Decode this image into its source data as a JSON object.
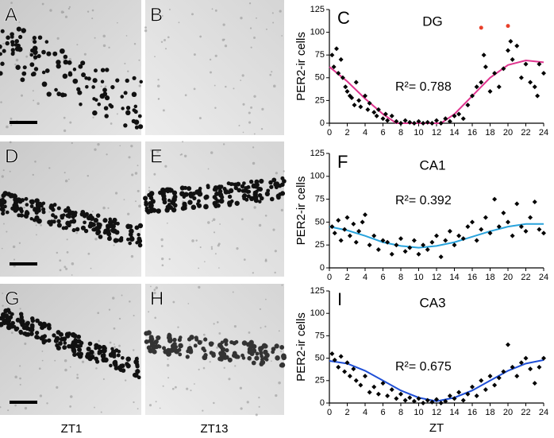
{
  "panels": [
    "A",
    "B",
    "D",
    "E",
    "G",
    "H"
  ],
  "column_labels": [
    "ZT1",
    "ZT13"
  ],
  "chart_data": [
    {
      "type": "scatter",
      "panel_label": "C",
      "title": "DG",
      "annotation": "R²= 0.788",
      "y_label": "PER2-ir cells",
      "xlim": [
        0,
        24
      ],
      "ylim": [
        0,
        125
      ],
      "xticks": [
        0,
        2,
        4,
        6,
        8,
        10,
        12,
        14,
        16,
        18,
        20,
        22,
        24
      ],
      "yticks": [
        0,
        25,
        50,
        75,
        100,
        125
      ],
      "series": [
        {
          "color": "#000000",
          "x": [
            0.3,
            0.5,
            0.8,
            1,
            1.3,
            1.5,
            1.8,
            2,
            2.3,
            2.5,
            2.8,
            3,
            3.3,
            3.5,
            4,
            4.3,
            4.5,
            5,
            5.3,
            5.5,
            6,
            6.3,
            6.5,
            7,
            7.5,
            8,
            8.5,
            9,
            9.5,
            10,
            10.5,
            11,
            11.5,
            12,
            12.5,
            13,
            13.5,
            14,
            14.5,
            15,
            15.5,
            16,
            16.5,
            17,
            17.3,
            17.5,
            18,
            18.5,
            19,
            19.5,
            20,
            20.3,
            20.5,
            21,
            21.5,
            22,
            22.5,
            23,
            23.3,
            23.5,
            24
          ],
          "values": [
            75,
            62,
            82,
            55,
            70,
            50,
            40,
            35,
            30,
            28,
            20,
            45,
            25,
            18,
            30,
            15,
            22,
            12,
            8,
            15,
            5,
            10,
            3,
            8,
            2,
            0,
            3,
            1,
            0,
            2,
            0,
            1,
            0,
            3,
            0,
            5,
            2,
            8,
            10,
            5,
            20,
            30,
            40,
            45,
            75,
            62,
            35,
            55,
            40,
            60,
            80,
            90,
            70,
            85,
            50,
            65,
            45,
            40,
            30,
            65,
            55
          ]
        },
        {
          "color": "#e8402a",
          "x": [
            17,
            20
          ],
          "values": [
            105,
            107
          ]
        }
      ],
      "fit": {
        "color": "#e0358f",
        "x": [
          0,
          2,
          4,
          6,
          7.5,
          12.5,
          14,
          16,
          18,
          20,
          22,
          24
        ],
        "values": [
          62,
          46,
          27,
          10,
          0,
          0,
          10,
          30,
          50,
          64,
          69,
          67
        ]
      }
    },
    {
      "type": "scatter",
      "panel_label": "F",
      "title": "CA1",
      "annotation": "R²= 0.392",
      "y_label": "PER2-ir cells",
      "xlim": [
        0,
        24
      ],
      "ylim": [
        0,
        125
      ],
      "xticks": [
        0,
        2,
        4,
        6,
        8,
        10,
        12,
        14,
        16,
        18,
        20,
        22,
        24
      ],
      "yticks": [
        0,
        25,
        50,
        75,
        100,
        125
      ],
      "series": [
        {
          "color": "#000000",
          "x": [
            0.3,
            0.6,
            1,
            1.3,
            1.7,
            2,
            2.3,
            2.7,
            3,
            3.3,
            3.7,
            4,
            4.5,
            5,
            5.5,
            6,
            6.5,
            7,
            7.5,
            8,
            8.5,
            9,
            9.5,
            10,
            10.5,
            11,
            11.5,
            12,
            12.5,
            13,
            13.5,
            14,
            14.5,
            15,
            15.5,
            16,
            16.5,
            17,
            17.5,
            18,
            18.5,
            19,
            19.5,
            20,
            20.5,
            21,
            21.5,
            22,
            22.5,
            23,
            23.5,
            24
          ],
          "values": [
            45,
            38,
            52,
            30,
            42,
            55,
            35,
            48,
            28,
            40,
            50,
            58,
            25,
            35,
            20,
            30,
            28,
            15,
            25,
            32,
            18,
            22,
            30,
            15,
            25,
            20,
            28,
            35,
            12,
            30,
            40,
            25,
            35,
            32,
            45,
            50,
            30,
            42,
            55,
            38,
            75,
            45,
            60,
            50,
            35,
            70,
            45,
            40,
            55,
            72,
            42,
            38
          ]
        }
      ],
      "fit": {
        "color": "#29a3dc",
        "x": [
          0,
          2,
          4,
          6,
          8,
          10,
          12,
          14,
          16,
          18,
          20,
          22,
          24
        ],
        "values": [
          45,
          41,
          35,
          28,
          24,
          22,
          24,
          28,
          34,
          40,
          45,
          48,
          48
        ]
      }
    },
    {
      "type": "scatter",
      "panel_label": "I",
      "title": "CA3",
      "annotation": "R²= 0.675",
      "y_label": "PER2-ir cells",
      "x_label": "ZT",
      "xlim": [
        0,
        24
      ],
      "ylim": [
        0,
        125
      ],
      "xticks": [
        0,
        2,
        4,
        6,
        8,
        10,
        12,
        14,
        16,
        18,
        20,
        22,
        24
      ],
      "yticks": [
        0,
        25,
        50,
        75,
        100,
        125
      ],
      "series": [
        {
          "color": "#000000",
          "x": [
            0.3,
            0.6,
            1,
            1.3,
            1.7,
            2,
            2.3,
            2.7,
            3,
            3.5,
            4,
            4.5,
            5,
            5.5,
            6,
            6.5,
            7,
            7.5,
            8,
            8.5,
            9,
            9.5,
            10,
            10.5,
            11,
            11.5,
            12,
            12.5,
            13,
            13.5,
            14,
            14.5,
            15,
            15.5,
            16,
            16.5,
            17,
            17.5,
            18,
            18.5,
            19,
            19.5,
            20,
            20.5,
            21,
            21.5,
            22,
            22.5,
            23,
            23.5,
            24
          ],
          "values": [
            55,
            48,
            40,
            52,
            35,
            45,
            30,
            38,
            25,
            20,
            30,
            12,
            18,
            10,
            22,
            8,
            15,
            5,
            10,
            3,
            6,
            2,
            5,
            0,
            3,
            1,
            4,
            0,
            2,
            8,
            5,
            12,
            3,
            10,
            18,
            8,
            25,
            15,
            30,
            20,
            28,
            35,
            65,
            40,
            30,
            45,
            50,
            38,
            22,
            40,
            50
          ]
        }
      ],
      "fit": {
        "color": "#1f4fd6",
        "x": [
          0,
          2,
          4,
          6,
          8,
          10,
          12,
          14,
          16,
          18,
          20,
          22,
          24
        ],
        "values": [
          47,
          44,
          36,
          25,
          14,
          6,
          2,
          6,
          14,
          25,
          36,
          44,
          48
        ]
      }
    }
  ]
}
